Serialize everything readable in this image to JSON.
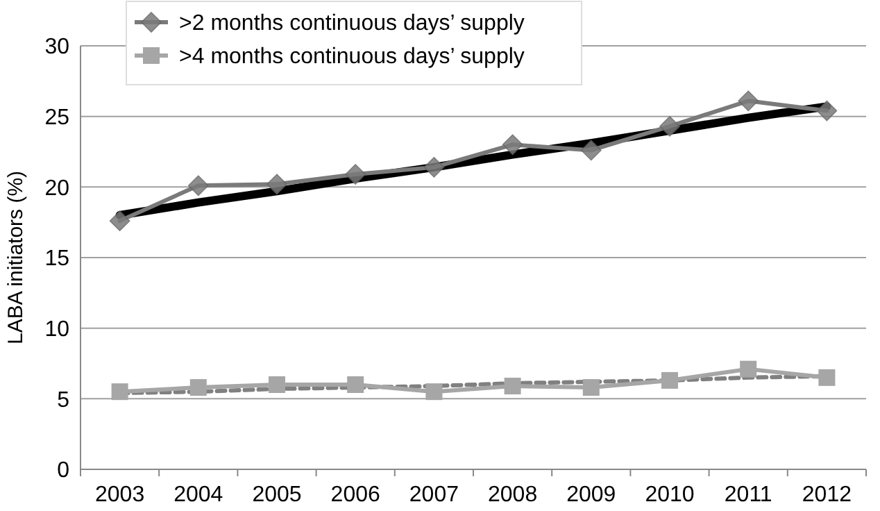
{
  "chart_data": {
    "type": "line",
    "ylabel": "LABA initiators (%)",
    "categories": [
      "2003",
      "2004",
      "2005",
      "2006",
      "2007",
      "2008",
      "2009",
      "2010",
      "2011",
      "2012"
    ],
    "series": [
      {
        "name": ">2 months continuous days’ supply",
        "color": "#7a7a7a",
        "marker": "diamond",
        "values": [
          17.6,
          20.1,
          20.2,
          20.9,
          21.4,
          23.0,
          22.6,
          24.3,
          26.1,
          25.4
        ]
      },
      {
        "name": ">4 months continuous days’ supply",
        "color": "#a6a6a6",
        "marker": "square",
        "values": [
          5.5,
          5.8,
          6.0,
          6.0,
          5.5,
          5.9,
          5.8,
          6.3,
          7.1,
          6.5
        ]
      },
      {
        "type": "line",
        "color": "#000000",
        "marker": "none",
        "values": [
          18.0,
          18.9,
          19.7,
          20.6,
          21.4,
          22.3,
          23.1,
          24.0,
          24.9,
          25.7
        ]
      },
      {
        "type": "line",
        "color": "#808080",
        "marker": "none",
        "line_style": "dashed",
        "values": [
          5.4,
          5.5,
          5.7,
          5.8,
          5.9,
          6.1,
          6.2,
          6.3,
          6.5,
          6.6
        ]
      }
    ],
    "ylim": [
      0,
      30
    ],
    "yticks": [
      0,
      5,
      10,
      15,
      20,
      25,
      30
    ],
    "grid": "y",
    "legend": "top left"
  }
}
